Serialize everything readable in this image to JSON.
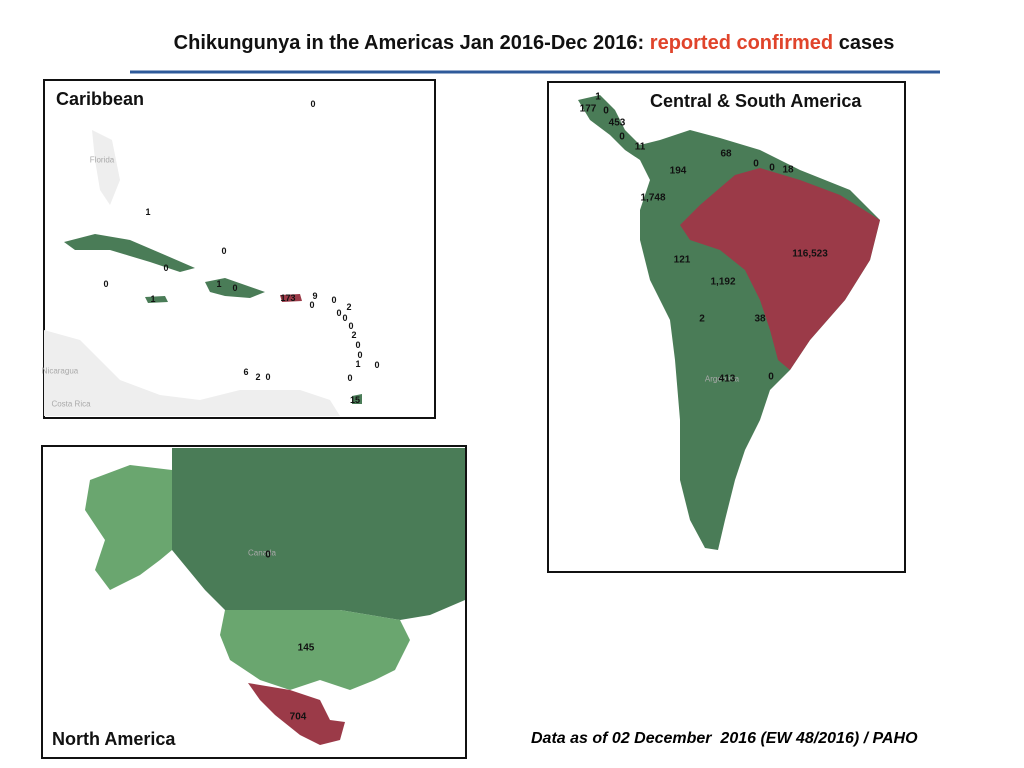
{
  "header": {
    "title": [
      "Chikungunya in the Americas Jan 2016-Dec 2016:",
      "reported confirmed",
      "cases"
    ]
  },
  "caribbean": {
    "title": "Caribbean",
    "places": [
      "Florida",
      "Nicaragua",
      "Costa Rica"
    ],
    "labels": [
      "0",
      "1",
      "0",
      "0",
      "0",
      "1",
      "0",
      "1",
      "173",
      "9",
      "0",
      "0",
      "2",
      "0",
      "0",
      "0",
      "2",
      "0",
      "0",
      "1",
      "0",
      "6",
      "2",
      "0",
      "0",
      "15"
    ]
  },
  "central_south_america": {
    "title": "Central & South America",
    "places": [
      "Argentina"
    ],
    "labels": [
      "1",
      "177",
      "0",
      "453",
      "0",
      "11",
      "68",
      "194",
      "0",
      "0",
      "18",
      "1,748",
      "116,523",
      "121",
      "1,192",
      "2",
      "38",
      "413",
      "0"
    ]
  },
  "north_america": {
    "title": "North America",
    "places": [
      "Canada"
    ],
    "labels": [
      "0",
      "145",
      "704"
    ]
  },
  "footer": "Data as of 02 December  2016 (EW 48/2016) / PAHO"
}
